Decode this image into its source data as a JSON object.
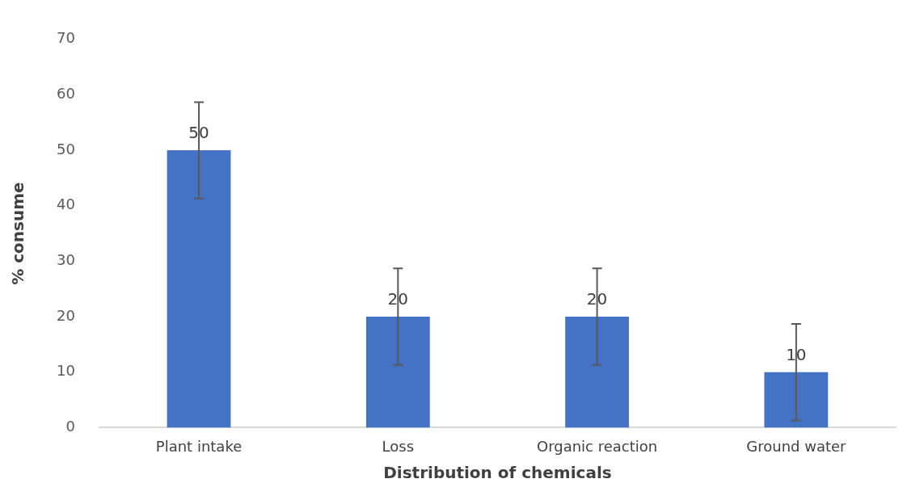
{
  "chart_data": {
    "type": "bar",
    "xlabel": "Distribution of chemicals",
    "ylabel": "% consume",
    "categories": [
      "Plant intake",
      "Loss",
      "Organic reaction",
      "Ground water"
    ],
    "values": [
      50,
      20,
      20,
      10
    ],
    "errors": [
      8.7,
      8.7,
      8.7,
      8.7
    ],
    "color": "#4472c4",
    "ylim": [
      0,
      70
    ],
    "yticks": [
      0,
      10,
      20,
      30,
      40,
      50,
      60,
      70
    ],
    "grid": false,
    "legend": false,
    "data_labels": true
  }
}
